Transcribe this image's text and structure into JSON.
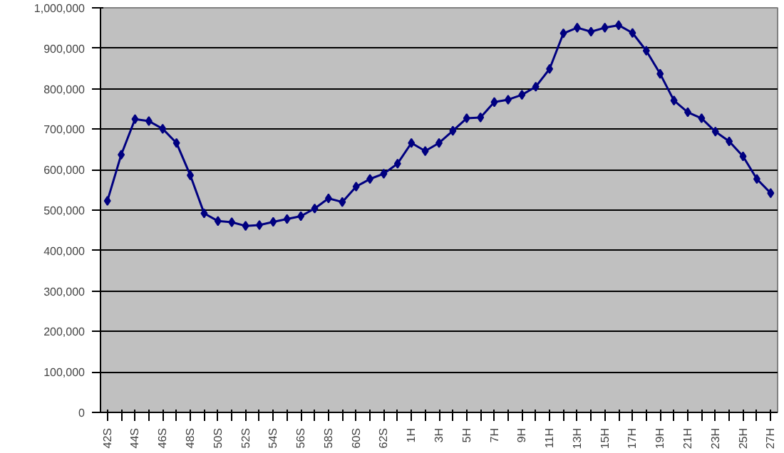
{
  "chart_data": {
    "type": "line",
    "categories": [
      "42S",
      null,
      "44S",
      null,
      "46S",
      null,
      "48S",
      null,
      "50S",
      null,
      "52S",
      null,
      "54S",
      null,
      "56S",
      null,
      "58S",
      null,
      "60S",
      null,
      "62S",
      null,
      "1H",
      null,
      "3H",
      null,
      "5H",
      null,
      "7H",
      null,
      "9H",
      null,
      "11H",
      null,
      "13H",
      null,
      "15H",
      null,
      "17H",
      null,
      "19H",
      null,
      "21H",
      null,
      "23H",
      null,
      "25H",
      null,
      "27H"
    ],
    "series": [
      {
        "color": "#000080",
        "values": [
          523000,
          637000,
          725000,
          720000,
          701000,
          666000,
          586000,
          492000,
          473000,
          470000,
          461000,
          463000,
          471000,
          478000,
          485000,
          504000,
          529000,
          520000,
          558000,
          577000,
          590000,
          615000,
          666000,
          646000,
          666000,
          696000,
          727000,
          729000,
          767000,
          773000,
          785000,
          805000,
          849000,
          937000,
          951000,
          941000,
          951000,
          957000,
          938000,
          894000,
          837000,
          771000,
          742000,
          727000,
          694000,
          670000,
          633000,
          577000,
          542000
        ]
      }
    ],
    "ylim": [
      0,
      1000000
    ],
    "yticks": [
      {
        "value": 0,
        "label": "0"
      },
      {
        "value": 100000,
        "label": "100,000"
      },
      {
        "value": 200000,
        "label": "200,000"
      },
      {
        "value": 300000,
        "label": "300,000"
      },
      {
        "value": 400000,
        "label": "400,000"
      },
      {
        "value": 500000,
        "label": "500,000"
      },
      {
        "value": 600000,
        "label": "600,000"
      },
      {
        "value": 700000,
        "label": "700,000"
      },
      {
        "value": 800000,
        "label": "800,000"
      },
      {
        "value": 900000,
        "label": "900,000"
      },
      {
        "value": 1000000,
        "label": "1,000,000"
      }
    ],
    "grid": "y",
    "marker": "diamond",
    "line_style": "solid"
  }
}
